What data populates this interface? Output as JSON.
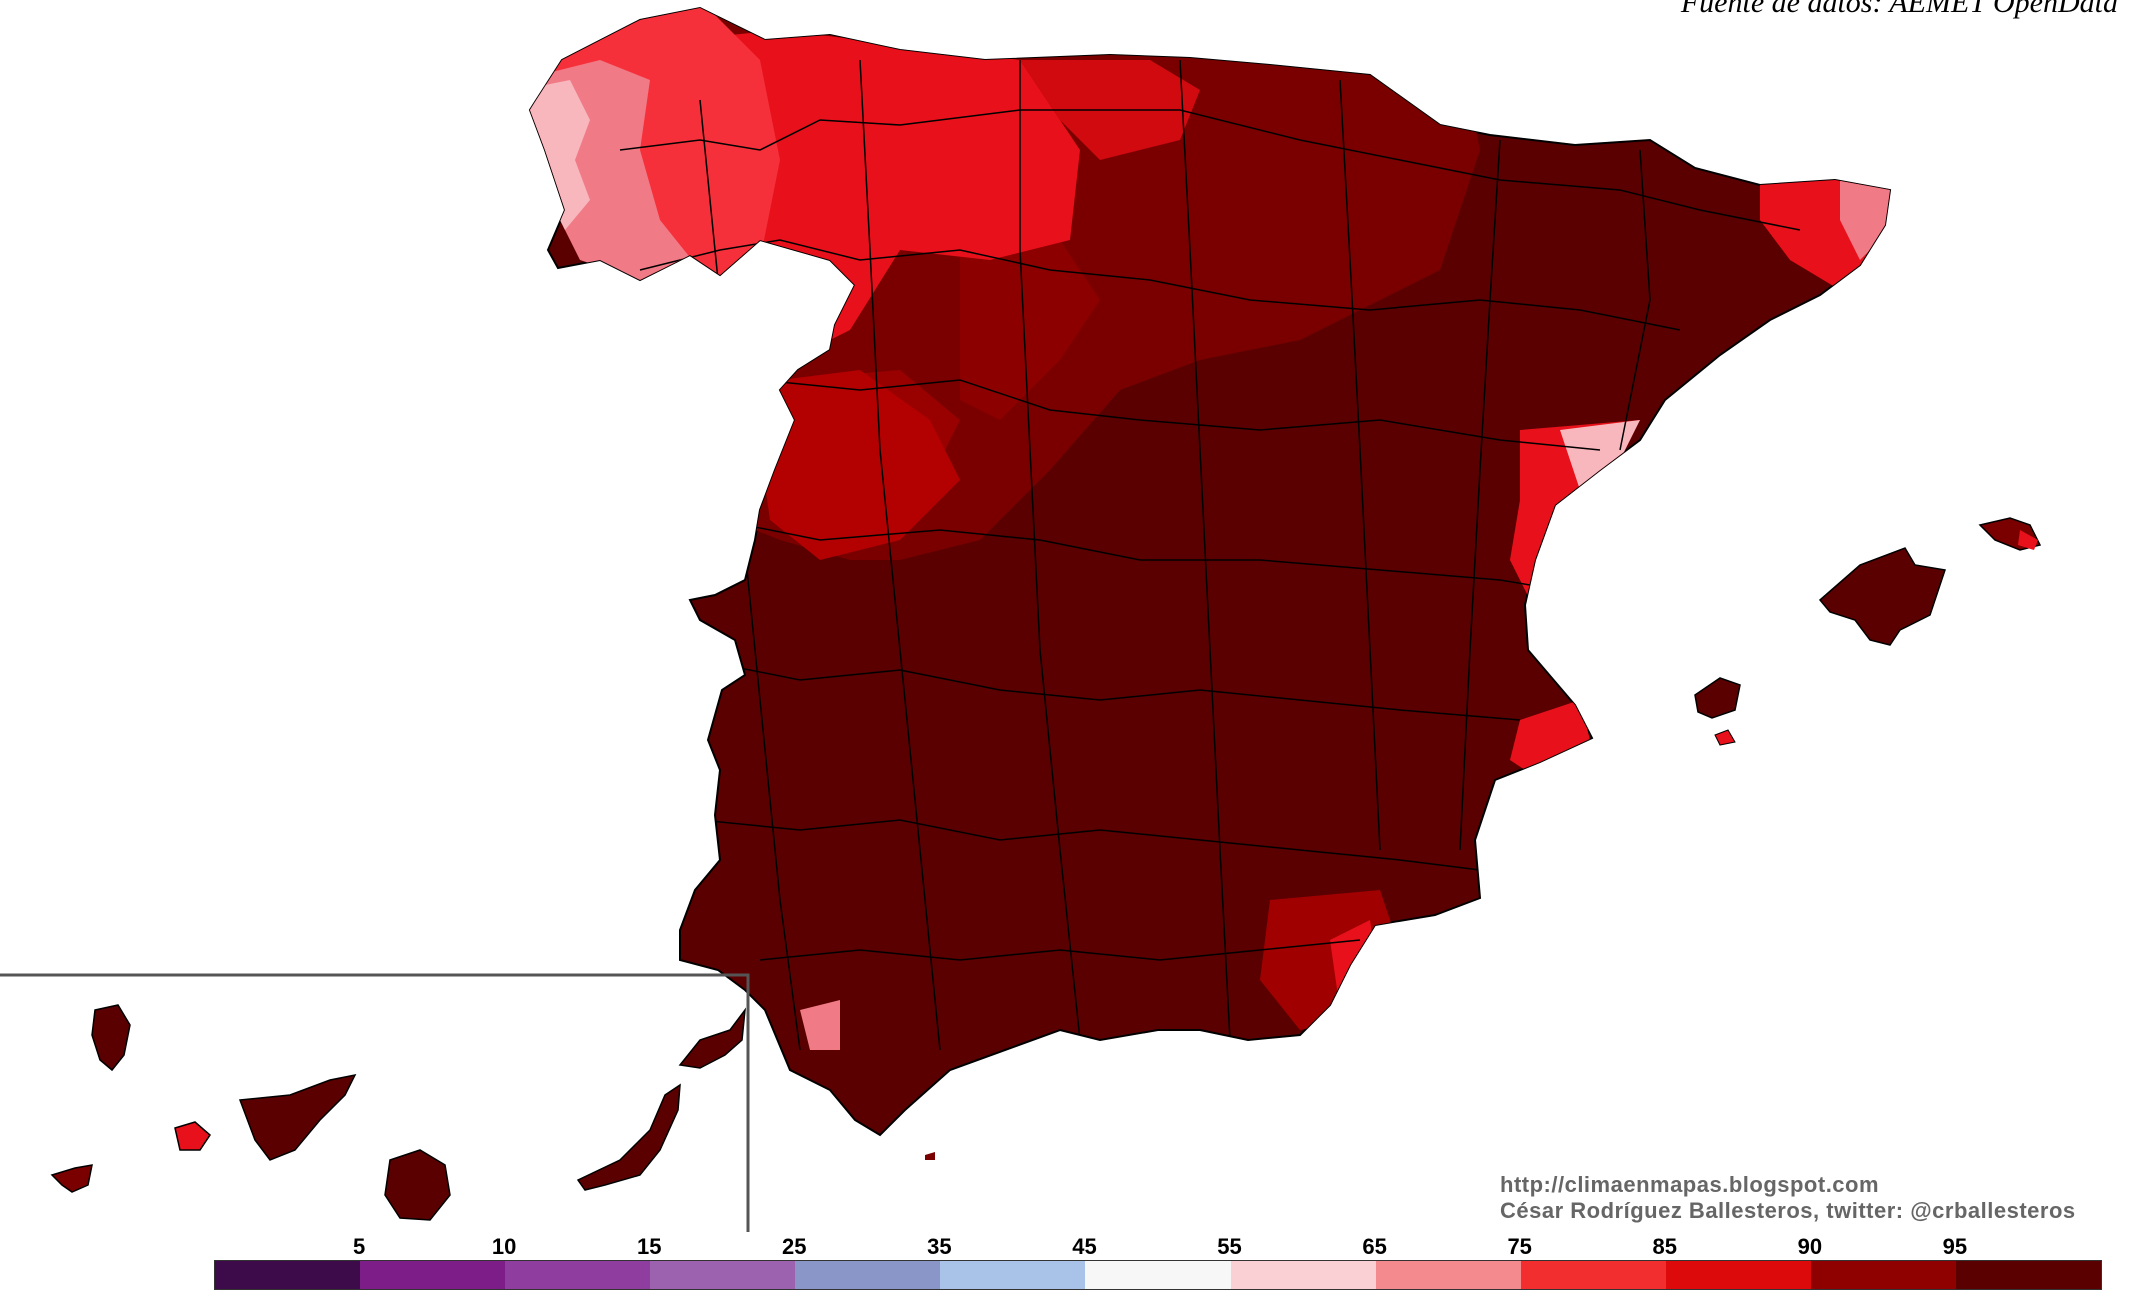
{
  "source_text": "Fuente de datos: AEMET OpenData",
  "credits": {
    "url": "http://climaenmapas.blogspot.com",
    "author": "César Rodríguez Ballesteros, twitter: @crballesteros"
  },
  "legend": {
    "labels": [
      "5",
      "10",
      "15",
      "25",
      "35",
      "45",
      "55",
      "65",
      "75",
      "85",
      "90",
      "95"
    ],
    "colors": [
      "#3d0a4a",
      "#7d1d87",
      "#8f3e9f",
      "#9c62b0",
      "#8a96c8",
      "#a9c3e8",
      "#f7f7f7",
      "#fbd0d4",
      "#f58a8e",
      "#f22e2e",
      "#dc0a0a",
      "#8f0000",
      "#5a0000"
    ]
  },
  "palette": {
    "darkest": "#5a0000",
    "dark": "#7a0000",
    "medium": "#a00000",
    "red": "#e8101a",
    "bright": "#f5303a",
    "pink": "#f07a86",
    "light_pink": "#f8b6bd",
    "border": "#000000",
    "inset_frame": "#555555"
  }
}
